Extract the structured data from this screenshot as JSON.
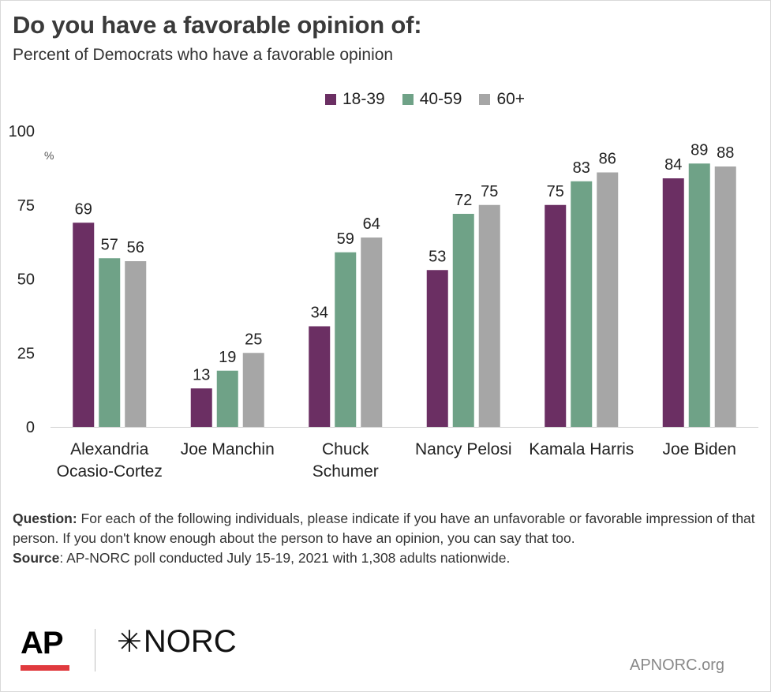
{
  "title": "Do you have a favorable opinion of:",
  "subtitle": "Percent of Democrats who have a favorable opinion",
  "colors": {
    "18-39": "#6b2f63",
    "40-59": "#6fa287",
    "60+": "#a6a6a6"
  },
  "chart_data": {
    "type": "bar",
    "ylabel": "%",
    "ylim": [
      0,
      100
    ],
    "yticks": [
      0,
      25,
      50,
      75,
      100
    ],
    "grid": false,
    "legend_position": "top",
    "categories": [
      [
        "Alexandria",
        "Ocasio-Cortez"
      ],
      [
        "Joe Manchin"
      ],
      [
        "Chuck",
        "Schumer"
      ],
      [
        "Nancy Pelosi"
      ],
      [
        "Kamala Harris"
      ],
      [
        "Joe Biden"
      ]
    ],
    "series": [
      {
        "name": "18-39",
        "values": [
          69,
          13,
          34,
          53,
          75,
          84
        ]
      },
      {
        "name": "40-59",
        "values": [
          57,
          19,
          59,
          72,
          83,
          89
        ]
      },
      {
        "name": "60+",
        "values": [
          56,
          25,
          64,
          75,
          86,
          88
        ]
      }
    ]
  },
  "notes": {
    "question_label": "Question:",
    "question_text": " For each of the following individuals, please indicate if you have an unfavorable or favorable impression of that person. If you don't know enough about the person to have an opinion, you can say that too.",
    "source_label": "Source",
    "source_text": ": AP-NORC poll conducted July 15-19, 2021 with 1,308 adults nationwide."
  },
  "footer": {
    "ap": "AP",
    "norc": "NORC",
    "norc_symbol": "✳",
    "url": "APNORC.org"
  }
}
